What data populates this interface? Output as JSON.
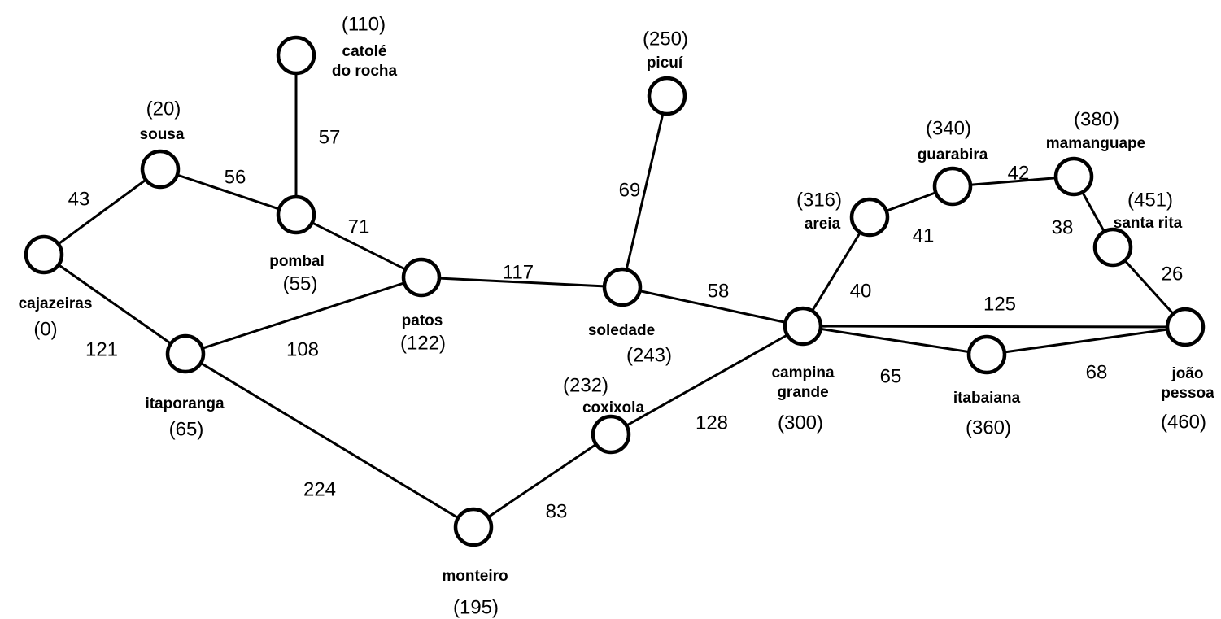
{
  "nodes": [
    {
      "id": "cajazeiras",
      "name_lines": [
        "cajazeiras"
      ],
      "distance": "(0)"
    },
    {
      "id": "sousa",
      "name_lines": [
        "sousa"
      ],
      "distance": "(20)"
    },
    {
      "id": "pombal",
      "name_lines": [
        "pombal"
      ],
      "distance": "(55)"
    },
    {
      "id": "catole",
      "name_lines": [
        "catolé",
        "do rocha"
      ],
      "distance": "(110)"
    },
    {
      "id": "itaporanga",
      "name_lines": [
        "itaporanga"
      ],
      "distance": "(65)"
    },
    {
      "id": "patos",
      "name_lines": [
        "patos"
      ],
      "distance": "(122)"
    },
    {
      "id": "monteiro",
      "name_lines": [
        "monteiro"
      ],
      "distance": "(195)"
    },
    {
      "id": "coxixola",
      "name_lines": [
        "coxixola"
      ],
      "distance": "(232)"
    },
    {
      "id": "soledade",
      "name_lines": [
        "soledade"
      ],
      "distance": "(243)"
    },
    {
      "id": "picui",
      "name_lines": [
        "picuí"
      ],
      "distance": "(250)"
    },
    {
      "id": "campina",
      "name_lines": [
        "campina",
        "grande"
      ],
      "distance": "(300)"
    },
    {
      "id": "areia",
      "name_lines": [
        "areia"
      ],
      "distance": "(316)"
    },
    {
      "id": "guarabira",
      "name_lines": [
        "guarabira"
      ],
      "distance": "(340)"
    },
    {
      "id": "mamanguape",
      "name_lines": [
        "mamanguape"
      ],
      "distance": "(380)"
    },
    {
      "id": "santarita",
      "name_lines": [
        "santa rita"
      ],
      "distance": "(451)"
    },
    {
      "id": "itabaiana",
      "name_lines": [
        "itabaiana"
      ],
      "distance": "(360)"
    },
    {
      "id": "joaopessoa",
      "name_lines": [
        "joão",
        "pessoa"
      ],
      "distance": "(460)"
    }
  ],
  "edges": [
    {
      "from": "cajazeiras",
      "to": "sousa",
      "weight": "43"
    },
    {
      "from": "cajazeiras",
      "to": "itaporanga",
      "weight": "121"
    },
    {
      "from": "sousa",
      "to": "pombal",
      "weight": "56"
    },
    {
      "from": "pombal",
      "to": "catole",
      "weight": "57"
    },
    {
      "from": "pombal",
      "to": "patos",
      "weight": "71"
    },
    {
      "from": "itaporanga",
      "to": "patos",
      "weight": "108"
    },
    {
      "from": "itaporanga",
      "to": "monteiro",
      "weight": "224"
    },
    {
      "from": "patos",
      "to": "soledade",
      "weight": "117"
    },
    {
      "from": "soledade",
      "to": "picui",
      "weight": "69"
    },
    {
      "from": "soledade",
      "to": "campina",
      "weight": "58"
    },
    {
      "from": "monteiro",
      "to": "coxixola",
      "weight": "83"
    },
    {
      "from": "coxixola",
      "to": "campina",
      "weight": "128"
    },
    {
      "from": "campina",
      "to": "areia",
      "weight": "40"
    },
    {
      "from": "areia",
      "to": "guarabira",
      "weight": "41"
    },
    {
      "from": "guarabira",
      "to": "mamanguape",
      "weight": "42"
    },
    {
      "from": "mamanguape",
      "to": "santarita",
      "weight": "38"
    },
    {
      "from": "santarita",
      "to": "joaopessoa",
      "weight": "26"
    },
    {
      "from": "campina",
      "to": "joaopessoa",
      "weight": "125"
    },
    {
      "from": "campina",
      "to": "itabaiana",
      "weight": "65"
    },
    {
      "from": "itabaiana",
      "to": "joaopessoa",
      "weight": "68"
    }
  ]
}
